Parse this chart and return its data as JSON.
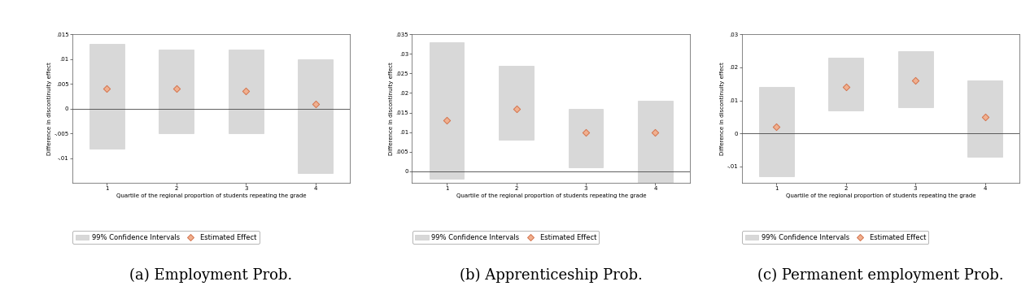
{
  "panels": [
    {
      "title": "(a) Employment Prob.",
      "ylabel": "Difference in discontinuity effect",
      "xlabel": "Quartile of the regional proportion of students repeating the grade",
      "ylim": [
        -0.015,
        0.015
      ],
      "yticks": [
        -0.01,
        -0.005,
        0,
        0.005,
        0.01,
        0.015
      ],
      "ytick_labels": [
        "-.01",
        "-.005",
        "0",
        ".005",
        ".01",
        ".015"
      ],
      "quartiles": [
        1,
        2,
        3,
        4
      ],
      "xtick_labels": [
        "1",
        "2",
        "3",
        "4"
      ],
      "estimates": [
        0.004,
        0.004,
        0.0035,
        0.001
      ],
      "ci_lower": [
        -0.008,
        -0.005,
        -0.005,
        -0.013
      ],
      "ci_upper": [
        0.013,
        0.012,
        0.012,
        0.01
      ]
    },
    {
      "title": "(b) Apprenticeship Prob.",
      "ylabel": "Difference in discontinuity effect",
      "xlabel": "Quartile of the regional proportion of students repeating the grade",
      "ylim": [
        -0.003,
        0.035
      ],
      "yticks": [
        0,
        0.005,
        0.01,
        0.015,
        0.02,
        0.025,
        0.03,
        0.035
      ],
      "ytick_labels": [
        "0",
        ".005",
        ".01",
        ".015",
        ".02",
        ".025",
        ".03",
        ".035"
      ],
      "quartiles": [
        1,
        2,
        3,
        4
      ],
      "xtick_labels": [
        "1",
        "2",
        "3",
        "4"
      ],
      "estimates": [
        0.013,
        0.016,
        0.01,
        0.01
      ],
      "ci_lower": [
        -0.002,
        0.008,
        0.001,
        -0.003
      ],
      "ci_upper": [
        0.033,
        0.027,
        0.016,
        0.018
      ]
    },
    {
      "title": "(c) Permanent employment Prob.",
      "ylabel": "Difference in discontinuity effect",
      "xlabel": "Quartile of the regional proportion of students repeating the grade",
      "ylim": [
        -0.015,
        0.03
      ],
      "yticks": [
        -0.01,
        0,
        0.01,
        0.02,
        0.03
      ],
      "ytick_labels": [
        "-.01",
        "0",
        ".01",
        ".02",
        ".03"
      ],
      "quartiles": [
        1,
        2,
        3,
        4
      ],
      "xtick_labels": [
        "1",
        "2",
        "3",
        "4"
      ],
      "estimates": [
        0.002,
        0.014,
        0.016,
        0.005
      ],
      "ci_lower": [
        -0.013,
        0.007,
        0.008,
        -0.007
      ],
      "ci_upper": [
        0.014,
        0.023,
        0.025,
        0.016
      ]
    }
  ],
  "bar_color": "#d8d8d8",
  "bar_edge_color": "#cccccc",
  "marker_color": "#d4724a",
  "marker_face_color": "#f0b090",
  "marker_size": 6,
  "bar_width": 0.5,
  "hline_color": "#444444",
  "legend_label_ci": "99% Confidence Intervals",
  "legend_label_est": "Estimated Effect",
  "axis_label_fontsize": 5,
  "tick_fontsize": 5,
  "legend_fontsize": 6,
  "subplot_title_fontsize": 13
}
